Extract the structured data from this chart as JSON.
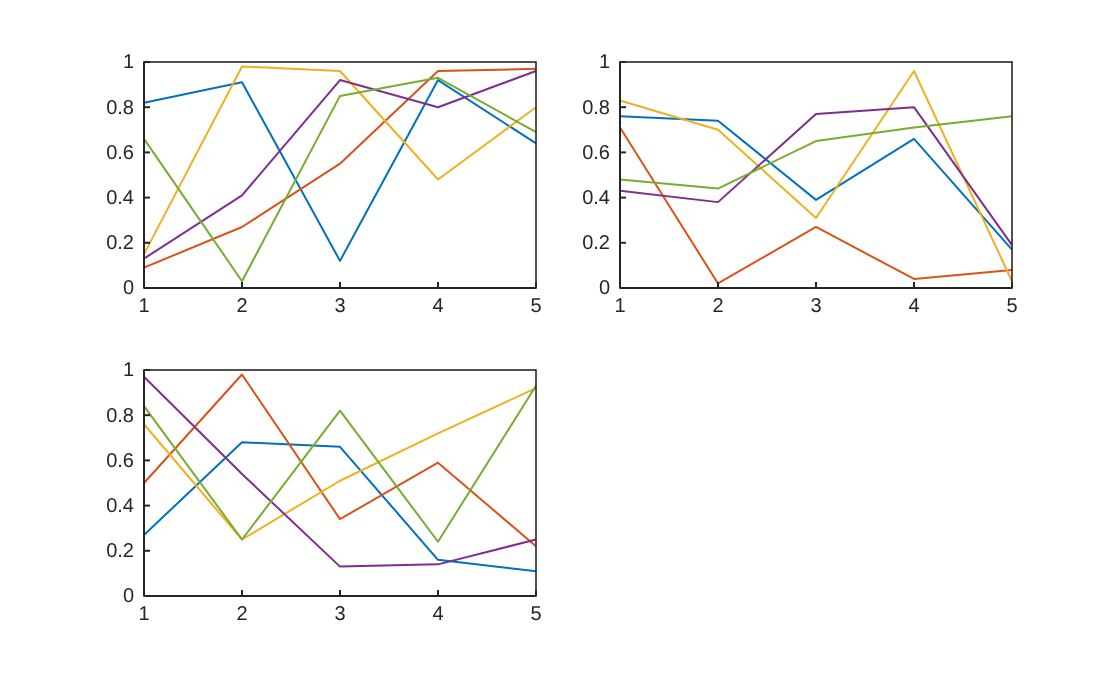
{
  "chart_data": [
    {
      "type": "line",
      "x": [
        1,
        2,
        3,
        4,
        5
      ],
      "xlim": [
        1,
        5
      ],
      "xticks": [
        1,
        2,
        3,
        4,
        5
      ],
      "ylim": [
        0,
        1
      ],
      "yticks": [
        0,
        0.2,
        0.4,
        0.6,
        0.8,
        1
      ],
      "series": [
        {
          "color": "#0072bd",
          "values": [
            0.82,
            0.91,
            0.12,
            0.92,
            0.64
          ]
        },
        {
          "color": "#d95319",
          "values": [
            0.09,
            0.27,
            0.55,
            0.96,
            0.97
          ]
        },
        {
          "color": "#edb120",
          "values": [
            0.15,
            0.98,
            0.96,
            0.48,
            0.8
          ]
        },
        {
          "color": "#7e2f8e",
          "values": [
            0.13,
            0.41,
            0.92,
            0.8,
            0.96
          ]
        },
        {
          "color": "#77ac30",
          "values": [
            0.66,
            0.03,
            0.85,
            0.93,
            0.69
          ]
        }
      ]
    },
    {
      "type": "line",
      "x": [
        1,
        2,
        3,
        4,
        5
      ],
      "xlim": [
        1,
        5
      ],
      "xticks": [
        1,
        2,
        3,
        4,
        5
      ],
      "ylim": [
        0,
        1
      ],
      "yticks": [
        0,
        0.2,
        0.4,
        0.6,
        0.8,
        1
      ],
      "series": [
        {
          "color": "#0072bd",
          "values": [
            0.76,
            0.74,
            0.39,
            0.66,
            0.17
          ]
        },
        {
          "color": "#d95319",
          "values": [
            0.71,
            0.02,
            0.27,
            0.04,
            0.08
          ]
        },
        {
          "color": "#edb120",
          "values": [
            0.83,
            0.7,
            0.31,
            0.96,
            0.03
          ]
        },
        {
          "color": "#7e2f8e",
          "values": [
            0.43,
            0.38,
            0.77,
            0.8,
            0.19
          ]
        },
        {
          "color": "#77ac30",
          "values": [
            0.48,
            0.44,
            0.65,
            0.71,
            0.76
          ]
        }
      ]
    },
    {
      "type": "line",
      "x": [
        1,
        2,
        3,
        4,
        5
      ],
      "xlim": [
        1,
        5
      ],
      "xticks": [
        1,
        2,
        3,
        4,
        5
      ],
      "ylim": [
        0,
        1
      ],
      "yticks": [
        0,
        0.2,
        0.4,
        0.6,
        0.8,
        1
      ],
      "series": [
        {
          "color": "#0072bd",
          "values": [
            0.27,
            0.68,
            0.66,
            0.16,
            0.11
          ]
        },
        {
          "color": "#d95319",
          "values": [
            0.5,
            0.98,
            0.34,
            0.59,
            0.22
          ]
        },
        {
          "color": "#edb120",
          "values": [
            0.76,
            0.25,
            0.51,
            0.72,
            0.92
          ]
        },
        {
          "color": "#7e2f8e",
          "values": [
            0.97,
            0.54,
            0.13,
            0.14,
            0.25
          ]
        },
        {
          "color": "#77ac30",
          "values": [
            0.84,
            0.25,
            0.82,
            0.24,
            0.93
          ]
        }
      ]
    }
  ]
}
